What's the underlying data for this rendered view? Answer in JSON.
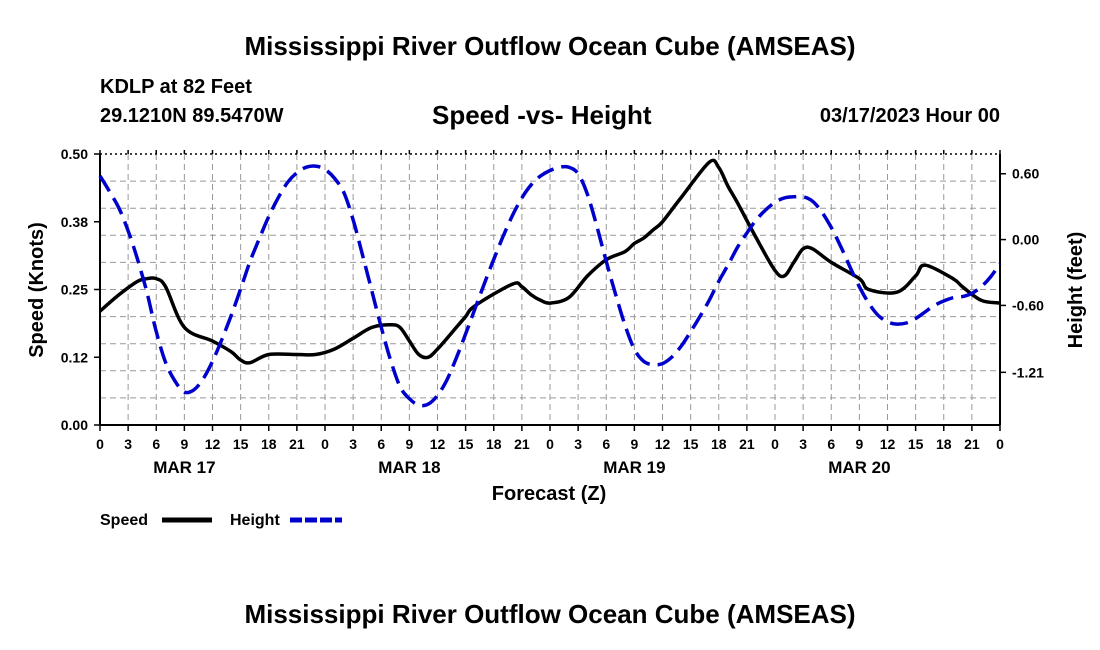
{
  "page": {
    "title": "Mississippi River Outflow Ocean Cube (AMSEAS)",
    "station": "KDLP at 82 Feet",
    "coords": "29.1210N  89.5470W",
    "subtitle": "Speed -vs- Height",
    "date": "03/17/2023 Hour 00",
    "bottom_title": "Mississippi River Outflow Ocean Cube (AMSEAS)"
  },
  "chart_data": {
    "type": "line",
    "title": "Speed -vs- Height",
    "xlabel": "Forecast (Z)",
    "ylabel": "Speed (Knots)",
    "y2label": "Height (feet)",
    "xlim": [
      0,
      96
    ],
    "ylim": [
      0,
      0.5
    ],
    "y2lim": [
      -1.69,
      0.78
    ],
    "x_tick_labels": [
      "0",
      "3",
      "6",
      "9",
      "12",
      "15",
      "18",
      "21",
      "0",
      "3",
      "6",
      "9",
      "12",
      "15",
      "18",
      "21",
      "0",
      "3",
      "6",
      "9",
      "12",
      "15",
      "18",
      "21",
      "0",
      "3",
      "6",
      "9",
      "12",
      "15",
      "18",
      "21",
      "0"
    ],
    "day_labels": [
      {
        "hour": 9,
        "label": "MAR 17"
      },
      {
        "hour": 33,
        "label": "MAR 18"
      },
      {
        "hour": 57,
        "label": "MAR 19"
      },
      {
        "hour": 81,
        "label": "MAR 20"
      }
    ],
    "y_ticks": [
      "0.00",
      "0.12",
      "0.25",
      "0.38",
      "0.50"
    ],
    "y_tick_values": [
      0,
      0.125,
      0.25,
      0.375,
      0.5
    ],
    "y2_ticks": [
      "0.60",
      "0.00",
      "-0.60",
      "-1.21"
    ],
    "y2_tick_values": [
      0.6,
      0.0,
      -0.6,
      -1.21
    ],
    "legend": [
      {
        "name": "Speed",
        "color": "#000000",
        "dash": "solid"
      },
      {
        "name": "Height",
        "color": "#0000cc",
        "dash": "dashed"
      }
    ],
    "series": [
      {
        "name": "Speed",
        "axis": "left",
        "color": "#000000",
        "x": [
          0,
          2,
          4,
          5,
          6,
          7,
          9,
          12,
          14,
          15,
          16,
          18,
          21,
          23,
          25,
          27,
          29,
          31,
          32,
          33,
          34,
          35,
          36,
          38,
          39,
          40,
          44,
          45,
          46,
          47,
          48,
          50,
          52,
          54,
          56,
          57,
          58,
          59,
          60,
          62,
          65,
          66,
          67,
          68,
          70,
          72,
          73,
          74,
          75,
          76,
          78,
          81,
          82,
          85,
          87,
          88,
          91,
          92,
          94,
          96
        ],
        "values": [
          0.21,
          0.24,
          0.265,
          0.27,
          0.27,
          0.255,
          0.18,
          0.155,
          0.135,
          0.12,
          0.115,
          0.13,
          0.13,
          0.13,
          0.14,
          0.16,
          0.18,
          0.185,
          0.18,
          0.155,
          0.13,
          0.125,
          0.14,
          0.18,
          0.2,
          0.22,
          0.26,
          0.255,
          0.24,
          0.23,
          0.225,
          0.235,
          0.275,
          0.305,
          0.32,
          0.335,
          0.345,
          0.36,
          0.375,
          0.42,
          0.485,
          0.475,
          0.44,
          0.41,
          0.345,
          0.285,
          0.275,
          0.3,
          0.325,
          0.325,
          0.3,
          0.27,
          0.25,
          0.245,
          0.275,
          0.295,
          0.27,
          0.255,
          0.23,
          0.225
        ]
      },
      {
        "name": "Height",
        "axis": "right",
        "color": "#0000cc",
        "x": [
          0,
          1,
          2,
          3,
          4,
          5,
          6,
          7,
          8,
          9,
          10,
          11,
          12,
          13,
          14,
          15,
          16,
          17,
          18,
          19,
          20,
          21,
          22,
          23,
          24,
          25,
          26,
          27,
          28,
          29,
          30,
          31,
          32,
          33,
          34,
          35,
          36,
          37,
          38,
          39,
          40,
          41,
          42,
          43,
          44,
          45,
          46,
          47,
          48,
          49,
          50,
          51,
          52,
          53,
          54,
          55,
          56,
          57,
          58,
          59,
          60,
          61,
          62,
          63,
          64,
          65,
          66,
          67,
          68,
          69,
          70,
          71,
          72,
          73,
          74,
          75,
          76,
          77,
          78,
          79,
          80,
          81,
          82,
          83,
          84,
          85,
          86,
          87,
          88,
          89,
          90,
          91,
          92,
          93,
          94,
          95,
          96
        ],
        "values": [
          0.58,
          0.44,
          0.29,
          0.08,
          -0.18,
          -0.48,
          -0.84,
          -1.12,
          -1.29,
          -1.39,
          -1.37,
          -1.27,
          -1.11,
          -0.91,
          -0.69,
          -0.45,
          -0.2,
          0.01,
          0.21,
          0.38,
          0.52,
          0.61,
          0.66,
          0.67,
          0.64,
          0.56,
          0.43,
          0.18,
          -0.14,
          -0.47,
          -0.8,
          -1.1,
          -1.34,
          -1.45,
          -1.51,
          -1.5,
          -1.42,
          -1.28,
          -1.08,
          -0.86,
          -0.63,
          -0.4,
          -0.18,
          0.03,
          0.22,
          0.38,
          0.5,
          0.58,
          0.63,
          0.66,
          0.66,
          0.6,
          0.41,
          0.12,
          -0.2,
          -0.5,
          -0.78,
          -1.0,
          -1.11,
          -1.14,
          -1.13,
          -1.07,
          -0.97,
          -0.84,
          -0.7,
          -0.55,
          -0.38,
          -0.23,
          -0.07,
          0.06,
          0.18,
          0.27,
          0.34,
          0.38,
          0.39,
          0.39,
          0.35,
          0.25,
          0.11,
          -0.06,
          -0.25,
          -0.43,
          -0.58,
          -0.69,
          -0.75,
          -0.77,
          -0.76,
          -0.72,
          -0.66,
          -0.6,
          -0.56,
          -0.53,
          -0.52,
          -0.49,
          -0.43,
          -0.34,
          -0.22
        ]
      }
    ]
  }
}
